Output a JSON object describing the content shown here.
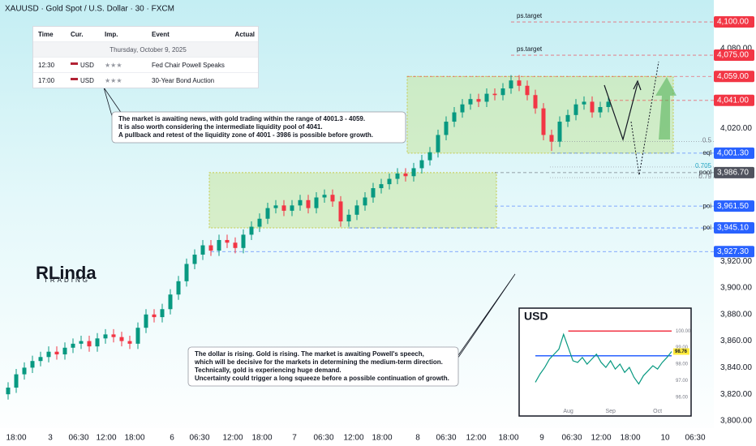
{
  "chart_data": [
    {
      "type": "candlestick",
      "title": "XAUUSD · Gold Spot / U.S. Dollar · 30 · FXCM",
      "logo": "RLinda",
      "logo_sub": "TRADING",
      "up_color": "#089981",
      "down_color": "#f23645",
      "xlim": [
        0,
        87
      ],
      "ylim": [
        3794.5,
        4116.5
      ],
      "xticks": [
        {
          "value": 2,
          "label": "18:00"
        },
        {
          "value": 6.2,
          "label": "3"
        },
        {
          "value": 9.7,
          "label": "06:30"
        },
        {
          "value": 13.1,
          "label": "12:00"
        },
        {
          "value": 16.6,
          "label": "18:00"
        },
        {
          "value": 21.2,
          "label": "6"
        },
        {
          "value": 24.6,
          "label": "06:30"
        },
        {
          "value": 28.7,
          "label": "12:00"
        },
        {
          "value": 32.3,
          "label": "18:00"
        },
        {
          "value": 36.3,
          "label": "7"
        },
        {
          "value": 39.9,
          "label": "06:30"
        },
        {
          "value": 43.6,
          "label": "12:00"
        },
        {
          "value": 47.1,
          "label": "18:00"
        },
        {
          "value": 51.5,
          "label": "8"
        },
        {
          "value": 55,
          "label": "06:30"
        },
        {
          "value": 58.7,
          "label": "12:00"
        },
        {
          "value": 62.7,
          "label": "18:00"
        },
        {
          "value": 66.8,
          "label": "9"
        },
        {
          "value": 70.5,
          "label": "06:30"
        },
        {
          "value": 74.1,
          "label": "12:00"
        },
        {
          "value": 77.7,
          "label": "18:00"
        },
        {
          "value": 82,
          "label": "10"
        },
        {
          "value": 85.7,
          "label": "06:30"
        }
      ],
      "yticks": [
        {
          "value": 3800,
          "label": "3,800.00"
        },
        {
          "value": 3820,
          "label": "3,820.00"
        },
        {
          "value": 3840,
          "label": "3,840.00"
        },
        {
          "value": 3860,
          "label": "3,860.00"
        },
        {
          "value": 3880,
          "label": "3,880.00"
        },
        {
          "value": 3900,
          "label": "3,900.00"
        },
        {
          "value": 3920,
          "label": "3,920.00"
        },
        {
          "value": 4020,
          "label": "4,020.00"
        },
        {
          "value": 4080,
          "label": "4,080.00"
        }
      ],
      "x": [
        1,
        2,
        3,
        4,
        5,
        6,
        7,
        8,
        9,
        10,
        11,
        12,
        13,
        14,
        15,
        16,
        17,
        18,
        19,
        20,
        21,
        22,
        23,
        24,
        25,
        26,
        27,
        28,
        29,
        30,
        31,
        32,
        33,
        34,
        35,
        36,
        37,
        38,
        39,
        40,
        41,
        42,
        43,
        44,
        45,
        46,
        47,
        48,
        49,
        50,
        51,
        52,
        53,
        54,
        55,
        56,
        57,
        58,
        59,
        60,
        61,
        62,
        63,
        64,
        65,
        66,
        67,
        68,
        69,
        70,
        71,
        72,
        73,
        74,
        75
      ],
      "open": [
        3820,
        3825,
        3835,
        3840,
        3845,
        3848,
        3852,
        3850,
        3855,
        3858,
        3860,
        3856,
        3862,
        3865,
        3863,
        3860,
        3858,
        3870,
        3880,
        3878,
        3884,
        3895,
        3905,
        3918,
        3925,
        3932,
        3928,
        3936,
        3934,
        3930,
        3940,
        3946,
        3952,
        3960,
        3962,
        3958,
        3962,
        3966,
        3960,
        3968,
        3970,
        3965,
        3950,
        3955,
        3962,
        3968,
        3975,
        3978,
        3982,
        3986,
        3984,
        3990,
        3996,
        4002,
        4015,
        4025,
        4032,
        4038,
        4042,
        4040,
        4046,
        4045,
        4050,
        4056,
        4052,
        4045,
        4035,
        4015,
        4010,
        4025,
        4030,
        4038,
        4040,
        4032,
        4036
      ],
      "high": [
        3829,
        3839,
        3844,
        3849,
        3852,
        3856,
        3856,
        3859,
        3862,
        3864,
        3864,
        3866,
        3869,
        3869,
        3867,
        3864,
        3874,
        3884,
        3884,
        3888,
        3899,
        3909,
        3922,
        3929,
        3936,
        3936,
        3940,
        3940,
        3938,
        3944,
        3950,
        3956,
        3964,
        3966,
        3966,
        3966,
        3970,
        3970,
        3972,
        3974,
        3974,
        3969,
        3959,
        3966,
        3972,
        3979,
        3982,
        3986,
        3990,
        3990,
        3994,
        4000,
        4006,
        4019,
        4029,
        4036,
        4042,
        4046,
        4046,
        4050,
        4050,
        4054,
        4060,
        4060,
        4056,
        4049,
        4039,
        4019,
        4029,
        4034,
        4042,
        4044,
        4044,
        4040,
        4044
      ],
      "low": [
        3816,
        3821,
        3831,
        3836,
        3841,
        3844,
        3846,
        3846,
        3851,
        3854,
        3852,
        3852,
        3858,
        3859,
        3856,
        3854,
        3854,
        3866,
        3874,
        3874,
        3880,
        3891,
        3901,
        3914,
        3921,
        3924,
        3924,
        3930,
        3926,
        3926,
        3936,
        3942,
        3948,
        3956,
        3954,
        3954,
        3958,
        3956,
        3956,
        3964,
        3961,
        3946,
        3946,
        3951,
        3958,
        3964,
        3971,
        3974,
        3978,
        3980,
        3980,
        3986,
        3992,
        3998,
        4011,
        4021,
        4028,
        4034,
        4036,
        4036,
        4041,
        4041,
        4046,
        4048,
        4041,
        4031,
        4011,
        4003,
        4006,
        4021,
        4026,
        4034,
        4028,
        4028,
        4032
      ],
      "close": [
        3825,
        3835,
        3840,
        3845,
        3848,
        3852,
        3850,
        3855,
        3858,
        3860,
        3856,
        3862,
        3865,
        3863,
        3860,
        3858,
        3870,
        3880,
        3878,
        3884,
        3895,
        3905,
        3918,
        3925,
        3932,
        3928,
        3936,
        3934,
        3930,
        3940,
        3946,
        3952,
        3960,
        3962,
        3958,
        3962,
        3966,
        3960,
        3968,
        3970,
        3965,
        3950,
        3955,
        3962,
        3968,
        3975,
        3978,
        3982,
        3986,
        3984,
        3990,
        3996,
        4002,
        4015,
        4025,
        4032,
        4038,
        4042,
        4040,
        4046,
        4045,
        4050,
        4056,
        4052,
        4045,
        4035,
        4015,
        4010,
        4025,
        4030,
        4038,
        4040,
        4032,
        4036,
        4040
      ],
      "levels": [
        {
          "value": 4100,
          "value_label": "4,100.00",
          "color": "#f23645",
          "from": 63,
          "tag": "ps.target"
        },
        {
          "value": 4075,
          "value_label": "4,075.00",
          "color": "#f23645",
          "from": 63,
          "tag": "ps.target"
        },
        {
          "value": 4059,
          "value_label": "4,059.00",
          "color": "#f23645",
          "from": 50.2
        },
        {
          "value": 4041,
          "value_label": "4,041.00",
          "color": "#f23645",
          "from": 75
        },
        {
          "value": 4001.3,
          "value_label": "4,001.30",
          "color": "#2962ff",
          "from": 68,
          "tag": "eql"
        },
        {
          "value": 3986.7,
          "value_label": "3,986.70",
          "color": "#50535e",
          "from": 61,
          "tag": "pool"
        },
        {
          "value": 3961.5,
          "value_label": "3,961.50",
          "color": "#2962ff",
          "from": 61,
          "tag": "poi"
        },
        {
          "value": 3945.1,
          "value_label": "3,945.10",
          "color": "#2962ff",
          "from": 43,
          "tag": "poi"
        },
        {
          "value": 3927.3,
          "value_label": "3,927.30",
          "color": "#2962ff",
          "from": 26
        }
      ],
      "fibs": [
        {
          "value": 4010,
          "label": "0.5"
        },
        {
          "value": 3990.9,
          "label": "0.705"
        },
        {
          "value": 3982.9,
          "label": "0.79"
        }
      ],
      "zones": [
        {
          "x": [
            25.8,
            61.2
          ],
          "y": [
            3945.1,
            3986.7
          ]
        },
        {
          "x": [
            50.2,
            83
          ],
          "y": [
            4001.3,
            4059
          ]
        }
      ],
      "events": {
        "headers": [
          "Time",
          "Cur.",
          "Imp.",
          "Event",
          "Actual"
        ],
        "date": "Thursday, October 9, 2025",
        "rows": [
          [
            "12:30",
            "USD",
            "Fed Chair Powell Speaks"
          ],
          [
            "17:00",
            "USD",
            "30-Year Bond Auction"
          ]
        ]
      },
      "annotations": [
        [
          "The market is awaiting news, with gold trading within the range of 4001.3 - 4059.",
          "It is also worth considering the intermediate liquidity pool of 4041.",
          "A pullback and retest of the liquidity zone of 4001 - 3986 is possible before growth."
        ],
        [
          "The dollar is rising. Gold is rising. The market is awaiting Powell's speech,",
          "which will be decisive for the markets in determining the medium-term direction.",
          "Technically, gold is experiencing huge demand.",
          "Uncertainty could trigger a long squeeze before a possible continuation of growth."
        ]
      ]
    },
    {
      "type": "line",
      "title": "USD",
      "color": "#089981",
      "categories": [
        null,
        null,
        null,
        null,
        null,
        null,
        null,
        "Aug",
        null,
        null,
        null,
        null,
        null,
        null,
        null,
        null,
        "Sep",
        null,
        null,
        null,
        null,
        null,
        null,
        null,
        null,
        null,
        "Oct",
        null,
        null,
        null
      ],
      "values": [
        96.9,
        97.4,
        97.8,
        98.3,
        98.6,
        98.9,
        99.8,
        99.0,
        98.2,
        98.1,
        98.4,
        98.0,
        98.3,
        98.6,
        98.1,
        97.8,
        98.2,
        97.7,
        98.0,
        97.5,
        97.8,
        97.2,
        96.8,
        97.3,
        97.6,
        97.9,
        97.7,
        98.1,
        98.4,
        98.76
      ],
      "ylim": [
        95.5,
        100.5
      ],
      "yticks": [
        {
          "value": 96,
          "label": "96.00"
        },
        {
          "value": 97,
          "label": "97.00"
        },
        {
          "value": 98,
          "label": "98.00"
        },
        {
          "value": 99,
          "label": "99.00"
        },
        {
          "value": 100,
          "label": "100.00"
        }
      ],
      "levels": [
        {
          "value": 100,
          "color": "#f23645"
        },
        {
          "value": 98.5,
          "color": "#2962ff"
        }
      ],
      "last": {
        "value": 98.76,
        "label": "98.76"
      }
    }
  ]
}
